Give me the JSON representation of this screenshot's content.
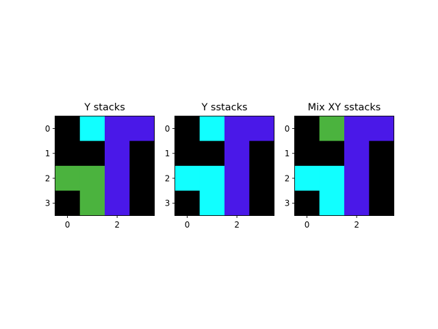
{
  "chart_data": [
    {
      "type": "heatmap",
      "title": "Y stacks",
      "x_ticks": [
        0,
        2
      ],
      "y_ticks": [
        0,
        1,
        2,
        3
      ],
      "xlim": [
        -0.5,
        3.5
      ],
      "ylim": [
        3.5,
        -0.5
      ],
      "cells": [
        [
          "black",
          "cyan",
          "purple",
          "purple"
        ],
        [
          "black",
          "black",
          "purple",
          "black"
        ],
        [
          "green",
          "green",
          "purple",
          "black"
        ],
        [
          "black",
          "green",
          "purple",
          "black"
        ]
      ]
    },
    {
      "type": "heatmap",
      "title": "Y sstacks",
      "x_ticks": [
        0,
        2
      ],
      "y_ticks": [
        0,
        1,
        2,
        3
      ],
      "xlim": [
        -0.5,
        3.5
      ],
      "ylim": [
        3.5,
        -0.5
      ],
      "cells": [
        [
          "black",
          "cyan",
          "purple",
          "purple"
        ],
        [
          "black",
          "black",
          "purple",
          "black"
        ],
        [
          "cyan",
          "cyan",
          "purple",
          "black"
        ],
        [
          "black",
          "cyan",
          "purple",
          "black"
        ]
      ]
    },
    {
      "type": "heatmap",
      "title": "Mix XY sstacks",
      "x_ticks": [
        0,
        2
      ],
      "y_ticks": [
        0,
        1,
        2,
        3
      ],
      "xlim": [
        -0.5,
        3.5
      ],
      "ylim": [
        3.5,
        -0.5
      ],
      "cells": [
        [
          "black",
          "green",
          "purple",
          "purple"
        ],
        [
          "black",
          "black",
          "purple",
          "black"
        ],
        [
          "cyan",
          "cyan",
          "purple",
          "black"
        ],
        [
          "black",
          "cyan",
          "purple",
          "black"
        ]
      ]
    }
  ],
  "colors": {
    "black": "#000000",
    "cyan": "#11ffff",
    "purple": "#4a18e8",
    "green": "#4bb33e"
  }
}
